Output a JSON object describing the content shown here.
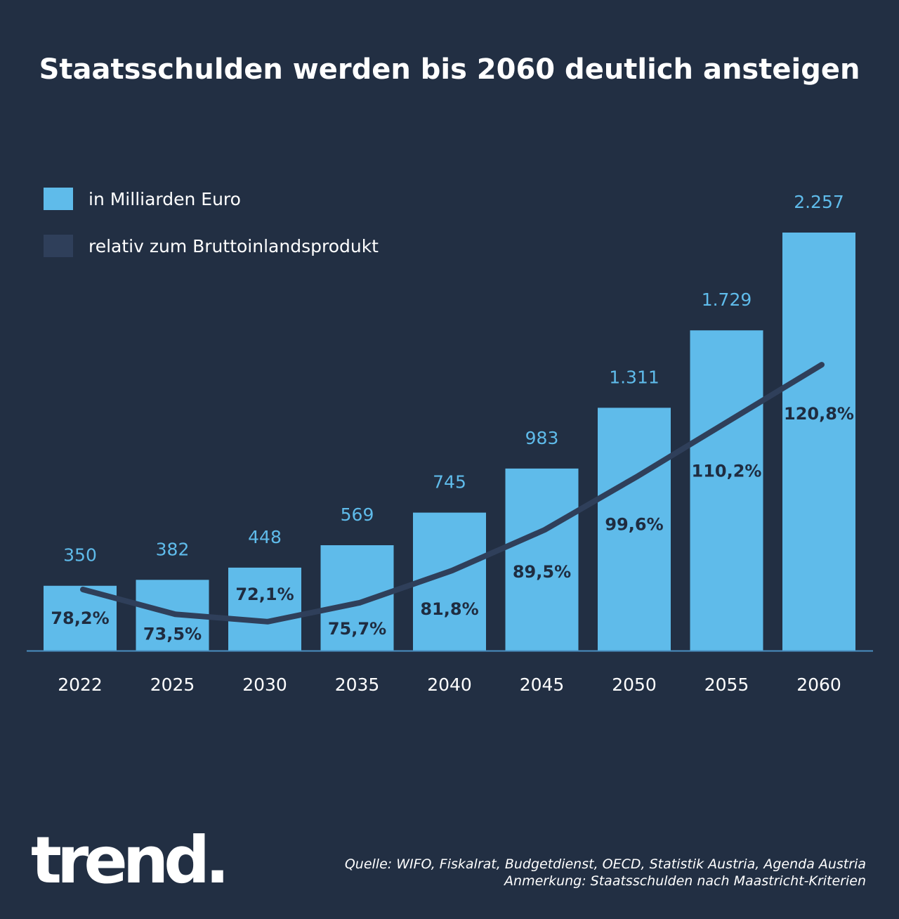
{
  "colors": {
    "background": "#222f43",
    "bar": "#5fbbea",
    "line": "#2f3f5a",
    "axis": "#4a8fc0"
  },
  "chart_data": {
    "type": "bar",
    "title": "Staatsschulden werden bis 2060 deutlich ansteigen",
    "categories": [
      "2022",
      "2025",
      "2030",
      "2035",
      "2040",
      "2045",
      "2050",
      "2055",
      "2060"
    ],
    "series": [
      {
        "name": "in Milliarden Euro",
        "type": "bar",
        "values": [
          350,
          382,
          448,
          569,
          745,
          983,
          1311,
          1729,
          2257
        ],
        "labels": [
          "350",
          "382",
          "448",
          "569",
          "745",
          "983",
          "1.311",
          "1.729",
          "2.257"
        ]
      },
      {
        "name": "relativ zum Bruttoinlandsprodukt",
        "type": "line",
        "values": [
          78.2,
          73.5,
          72.1,
          75.7,
          81.8,
          89.5,
          99.6,
          110.2,
          120.8
        ],
        "labels": [
          "78,2%",
          "73,5%",
          "72,1%",
          "75,7%",
          "81,8%",
          "89,5%",
          "99,6%",
          "110,2%",
          "120,8%"
        ]
      }
    ],
    "legend_position": "top-left",
    "grid": false,
    "ylim": [
      0,
      2257
    ]
  },
  "footer": {
    "logo": "trend.",
    "source": "Quelle: WIFO, Fiskalrat, Budgetdienst, OECD, Statistik Austria, Agenda Austria",
    "note": "Anmerkung: Staatsschulden nach Maastricht-Kriterien"
  }
}
